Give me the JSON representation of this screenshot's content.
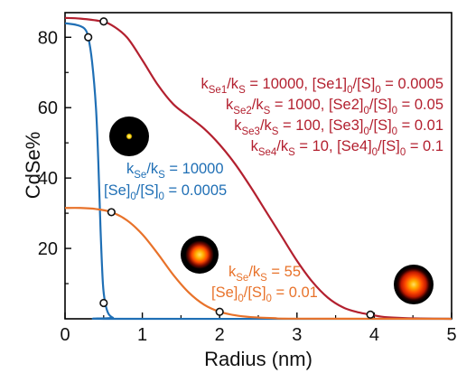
{
  "chart_data": {
    "type": "line",
    "xlabel": "Radius (nm)",
    "ylabel": "CdSe%",
    "xlim": [
      0,
      5
    ],
    "ylim": [
      0,
      87
    ],
    "xticks": [
      0,
      1,
      2,
      3,
      4,
      5
    ],
    "yticks": [
      20,
      40,
      60,
      80
    ],
    "grid": false,
    "colors": {
      "red": "#b3202f",
      "blue": "#1f6fb5",
      "orange": "#e8722a",
      "marker": "#111111"
    },
    "series": [
      {
        "key": "red",
        "x": [
          0,
          0.2,
          0.45,
          0.6,
          0.8,
          1.0,
          1.2,
          1.4,
          1.6,
          1.8,
          2.0,
          2.2,
          2.4,
          2.6,
          2.8,
          3.0,
          3.2,
          3.4,
          3.6,
          3.8,
          3.95,
          4.1,
          4.3,
          4.6,
          5.0
        ],
        "y": [
          85.5,
          85.3,
          84.6,
          83.5,
          80.0,
          73.5,
          66.5,
          61.0,
          57.5,
          54.0,
          49.5,
          44.0,
          37.5,
          30.5,
          23.5,
          16.5,
          10.5,
          6.0,
          3.2,
          1.8,
          1.2,
          0.6,
          0.3,
          0.1,
          0.0
        ]
      },
      {
        "key": "blue",
        "x": [
          0,
          0.15,
          0.25,
          0.3,
          0.35,
          0.4,
          0.43,
          0.46,
          0.49,
          0.52,
          0.56,
          0.62,
          0.7,
          5.0
        ],
        "y": [
          84.0,
          83.5,
          82.5,
          80.0,
          73.0,
          60.0,
          45.0,
          25.0,
          10.0,
          4.5,
          1.5,
          0.3,
          0.0,
          0.0
        ]
      },
      {
        "key": "orange",
        "x": [
          0,
          0.2,
          0.4,
          0.6,
          0.8,
          1.0,
          1.2,
          1.4,
          1.6,
          1.8,
          2.0,
          2.2,
          2.4,
          2.7,
          3.0,
          5.0
        ],
        "y": [
          31.5,
          31.5,
          31.2,
          30.3,
          28.0,
          24.0,
          18.5,
          12.5,
          7.5,
          4.0,
          2.0,
          1.0,
          0.5,
          0.2,
          0.05,
          0.0
        ]
      }
    ],
    "markers": [
      {
        "series": "red",
        "x": 0.5,
        "y": 84.5
      },
      {
        "series": "red",
        "x": 3.95,
        "y": 1.2
      },
      {
        "series": "blue",
        "x": 0.3,
        "y": 80.0
      },
      {
        "series": "blue",
        "x": 0.5,
        "y": 4.5
      },
      {
        "series": "orange",
        "x": 0.6,
        "y": 30.3
      },
      {
        "series": "orange",
        "x": 2.0,
        "y": 2.0
      }
    ],
    "annotations": {
      "red": [
        {
          "k_sub": "Se1",
          "ratio": "10000",
          "p_sub": "Se1",
          "conc": "0.0005"
        },
        {
          "k_sub": "Se2",
          "ratio": "1000",
          "p_sub": "Se2",
          "conc": "0.05"
        },
        {
          "k_sub": "Se3",
          "ratio": "100",
          "p_sub": "Se3",
          "conc": "0.01"
        },
        {
          "k_sub": "Se4",
          "ratio": "10",
          "p_sub": "Se4",
          "conc": "0.1"
        }
      ],
      "blue": {
        "ratio": "10000",
        "conc": "0.0005"
      },
      "orange": {
        "ratio": "55",
        "conc": "0.01"
      }
    }
  }
}
